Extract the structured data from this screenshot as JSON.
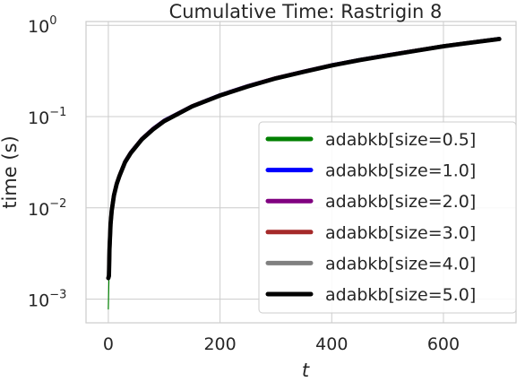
{
  "chart_data": {
    "type": "line",
    "title": "Cumulative Time: Rastrigin 8",
    "xlabel": "t",
    "ylabel": "time (s)",
    "xlim": [
      -40,
      730
    ],
    "ylim": [
      0.00055,
      1.1
    ],
    "yscale": "log",
    "grid": true,
    "legend_position": "lower-right",
    "xticks": [
      0,
      200,
      400,
      600
    ],
    "xtick_labels": [
      "0",
      "200",
      "400",
      "600"
    ],
    "yticks": [
      0.001,
      0.01,
      0.1,
      1
    ],
    "ytick_labels": [
      {
        "base": "10",
        "exp": "−3"
      },
      {
        "base": "10",
        "exp": "−2"
      },
      {
        "base": "10",
        "exp": "−1"
      },
      {
        "base": "10",
        "exp": "0"
      }
    ],
    "x": [
      0,
      1,
      2,
      4,
      6,
      10,
      15,
      20,
      30,
      40,
      60,
      80,
      100,
      150,
      200,
      250,
      300,
      350,
      400,
      450,
      500,
      550,
      600,
      650,
      700
    ],
    "series": [
      {
        "name": "adabkb[size=0.5]",
        "color": "#008000",
        "values": [
          0.00078,
          0.0017,
          0.0035,
          0.0066,
          0.0093,
          0.0137,
          0.0183,
          0.0224,
          0.0316,
          0.0398,
          0.0562,
          0.0724,
          0.0891,
          0.129,
          0.17,
          0.214,
          0.262,
          0.309,
          0.363,
          0.416,
          0.468,
          0.525,
          0.589,
          0.646,
          0.708
        ]
      },
      {
        "name": "adabkb[size=1.0]",
        "color": "#0000ff",
        "values": [
          0.0017,
          0.0018,
          0.0036,
          0.0068,
          0.0096,
          0.0141,
          0.0188,
          0.0229,
          0.0324,
          0.0407,
          0.0575,
          0.074,
          0.0912,
          0.131,
          0.173,
          0.218,
          0.266,
          0.314,
          0.368,
          0.421,
          0.474,
          0.531,
          0.595,
          0.652,
          0.715
        ]
      },
      {
        "name": "adabkb[size=2.0]",
        "color": "#800080",
        "values": [
          0.0017,
          0.0018,
          0.0036,
          0.0067,
          0.0095,
          0.014,
          0.0187,
          0.0228,
          0.0322,
          0.0405,
          0.0572,
          0.0736,
          0.0906,
          0.13,
          0.172,
          0.217,
          0.265,
          0.313,
          0.366,
          0.419,
          0.472,
          0.529,
          0.593,
          0.65,
          0.712
        ]
      },
      {
        "name": "adabkb[size=3.0]",
        "color": "#a52a2a",
        "values": [
          0.0017,
          0.0018,
          0.0035,
          0.0067,
          0.0094,
          0.0139,
          0.0185,
          0.0226,
          0.032,
          0.0402,
          0.0568,
          0.0731,
          0.09,
          0.13,
          0.171,
          0.216,
          0.264,
          0.311,
          0.365,
          0.418,
          0.47,
          0.527,
          0.591,
          0.648,
          0.71
        ]
      },
      {
        "name": "adabkb[size=4.0]",
        "color": "#808080",
        "values": [
          0.0017,
          0.0018,
          0.0035,
          0.0066,
          0.0094,
          0.0138,
          0.0184,
          0.0225,
          0.0318,
          0.04,
          0.0565,
          0.0727,
          0.0895,
          0.129,
          0.171,
          0.215,
          0.263,
          0.31,
          0.364,
          0.417,
          0.469,
          0.526,
          0.59,
          0.647,
          0.709
        ]
      },
      {
        "name": "adabkb[size=5.0]",
        "color": "#000000",
        "values": [
          0.0017,
          0.0018,
          0.0035,
          0.0066,
          0.0093,
          0.0137,
          0.0183,
          0.0224,
          0.0316,
          0.0398,
          0.0562,
          0.0724,
          0.0891,
          0.129,
          0.17,
          0.214,
          0.262,
          0.309,
          0.363,
          0.416,
          0.468,
          0.525,
          0.589,
          0.646,
          0.708
        ]
      }
    ]
  }
}
